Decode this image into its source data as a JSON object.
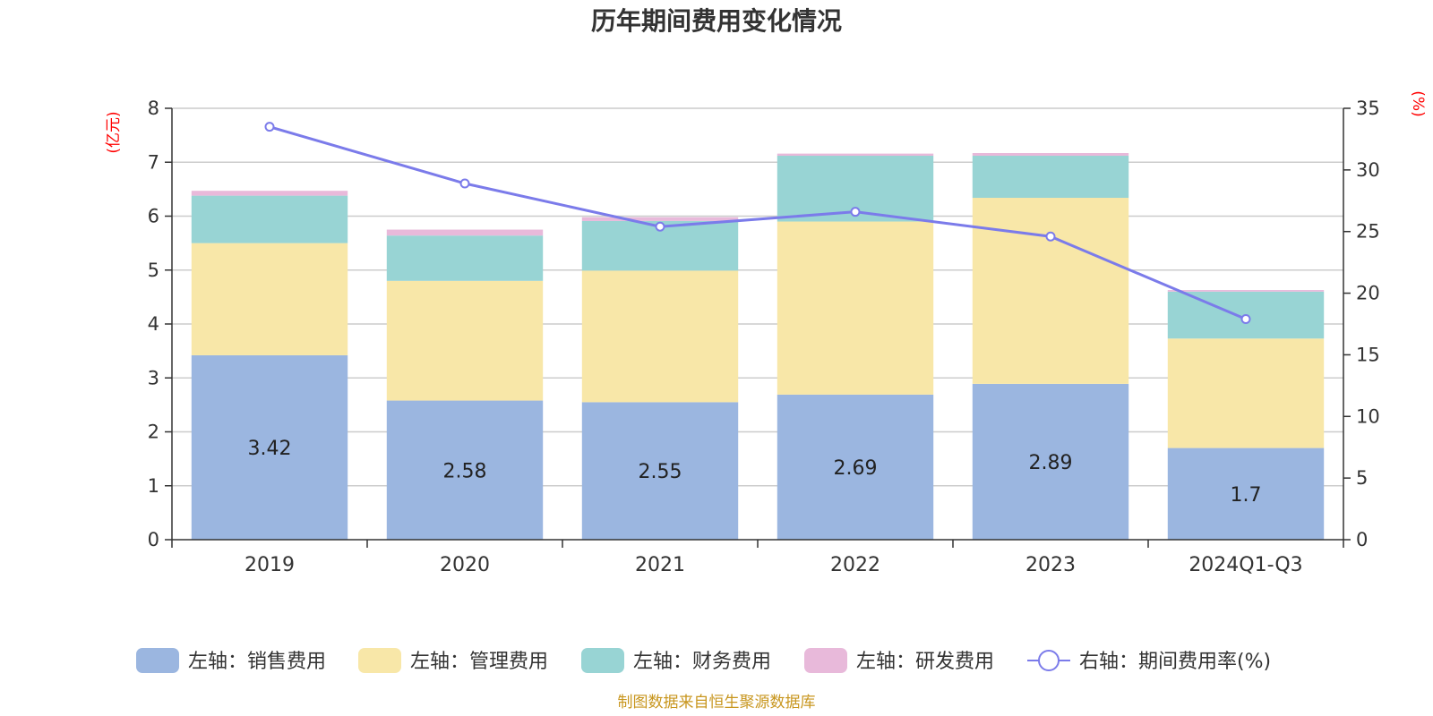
{
  "chart_data": {
    "type": "bar",
    "stacked": true,
    "title": "历年期间费用变化情况",
    "categories": [
      "2019",
      "2020",
      "2021",
      "2022",
      "2023",
      "2024Q1-Q3"
    ],
    "left_axis": {
      "unit": "(亿元)",
      "ylim": [
        0,
        8
      ],
      "ticks": [
        0,
        1,
        2,
        3,
        4,
        5,
        6,
        7,
        8
      ]
    },
    "right_axis": {
      "unit": "(%)",
      "ylim": [
        0,
        35
      ],
      "ticks": [
        0,
        5,
        10,
        15,
        20,
        25,
        30,
        35
      ]
    },
    "series": [
      {
        "name": "左轴：销售费用",
        "axis": "left",
        "type": "bar",
        "color": "#9bb6e0",
        "values": [
          3.42,
          2.58,
          2.55,
          2.69,
          2.89,
          1.7
        ]
      },
      {
        "name": "左轴：管理费用",
        "axis": "left",
        "type": "bar",
        "color": "#f8e7a8",
        "values": [
          2.08,
          2.22,
          2.44,
          3.21,
          3.45,
          2.03
        ]
      },
      {
        "name": "左轴：财务费用",
        "axis": "left",
        "type": "bar",
        "color": "#98d4d4",
        "values": [
          0.88,
          0.84,
          0.92,
          1.22,
          0.78,
          0.87
        ]
      },
      {
        "name": "左轴：研发费用",
        "axis": "left",
        "type": "bar",
        "color": "#e8b9da",
        "values": [
          0.09,
          0.11,
          0.07,
          0.04,
          0.05,
          0.03
        ]
      },
      {
        "name": "右轴：期间费用率(%)",
        "axis": "right",
        "type": "line",
        "color": "#7b7bea",
        "values": [
          33.5,
          28.9,
          25.4,
          26.6,
          24.6,
          17.9
        ]
      }
    ],
    "data_labels": [
      "3.42",
      "2.58",
      "2.55",
      "2.69",
      "2.89",
      "1.7"
    ],
    "legend_position": "bottom",
    "grid": true
  },
  "footer": {
    "source": "制图数据来自恒生聚源数据库"
  }
}
